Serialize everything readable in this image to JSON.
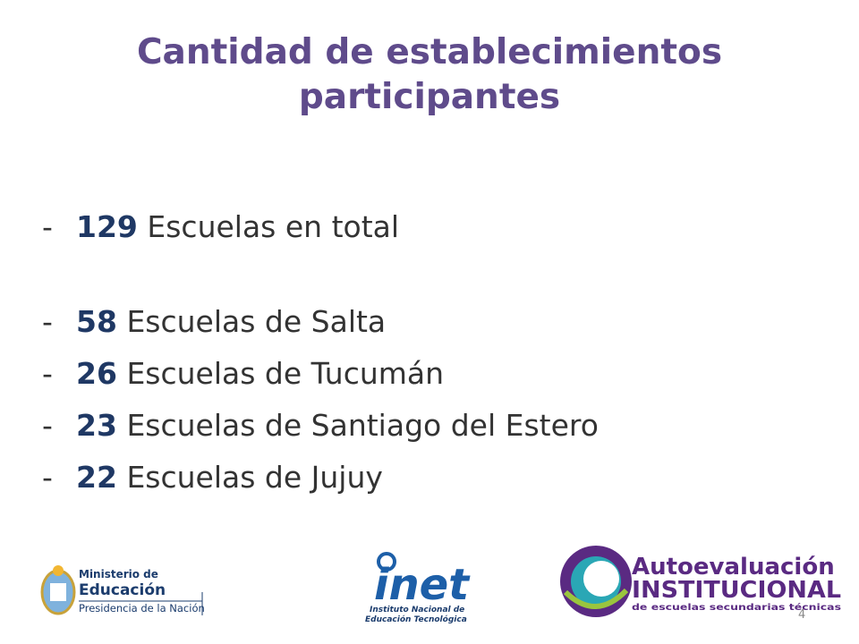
{
  "title": "Cantidad de establecimientos participantes",
  "bullet": "-",
  "items": [
    {
      "count": 129,
      "label": "Escuelas en total"
    },
    {
      "count": 58,
      "label": "Escuelas de Salta"
    },
    {
      "count": 26,
      "label": "Escuelas de Tucumán"
    },
    {
      "count": 23,
      "label": "Escuelas de Santiago del Estero"
    },
    {
      "count": 22,
      "label": "Escuelas de Jujuy"
    }
  ],
  "logos": {
    "ministerio": {
      "line1": "Ministerio de",
      "line2": "Educación",
      "line3": "Presidencia de la Nación"
    },
    "inet": {
      "name": "inet",
      "line1": "Instituto Nacional de",
      "line2": "Educación Tecnológica"
    },
    "autoevaluacion": {
      "line1": "Autoevaluación",
      "line2": "INSTITUCIONAL",
      "line3": "de escuelas secundarias técnicas"
    }
  },
  "page_number": "4"
}
